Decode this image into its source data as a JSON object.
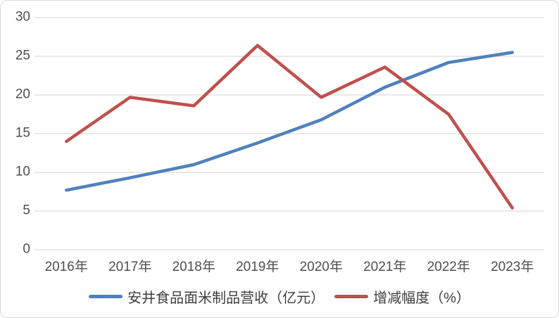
{
  "chart_data": {
    "type": "line",
    "title": "",
    "xlabel": "",
    "ylabel": "",
    "categories": [
      "2016年",
      "2017年",
      "2018年",
      "2019年",
      "2020年",
      "2021年",
      "2022年",
      "2023年"
    ],
    "series": [
      {
        "name": "安井食品面米制品营收（亿元）",
        "color": "#4F81BD",
        "values": [
          7.7,
          9.3,
          11.0,
          13.8,
          16.8,
          21.0,
          24.2,
          25.5
        ]
      },
      {
        "name": "增减幅度（%）",
        "color": "#C0504D",
        "values": [
          14.0,
          19.7,
          18.6,
          26.4,
          19.7,
          23.6,
          17.5,
          5.4
        ]
      }
    ],
    "ylim": [
      0,
      30
    ],
    "yticks": [
      0,
      5,
      10,
      15,
      20,
      25,
      30
    ],
    "grid": "horizontal",
    "legend_position": "bottom"
  },
  "colors": {
    "gridline": "#dcdcdc",
    "axis_text": "#4f4f4f",
    "legend_text": "#3f3f3f",
    "border": "#d9d9d9",
    "background": "#ffffff"
  }
}
